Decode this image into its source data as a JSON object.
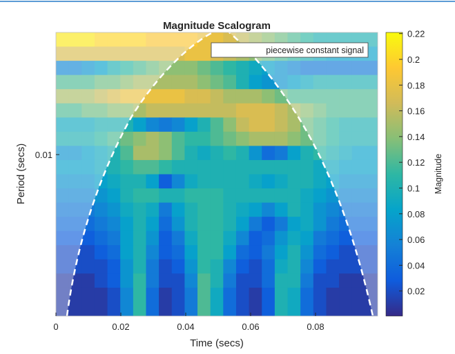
{
  "chart_data": {
    "type": "heatmap",
    "title": "Magnitude Scalogram",
    "xlabel": "Time (secs)",
    "ylabel": "Period (secs)",
    "colorbar_label": "Magnitude",
    "legend": [
      "piecewise constant signal"
    ],
    "legend_placement": "top-right",
    "xlim": [
      0,
      0.1
    ],
    "xticks": [
      0,
      0.02,
      0.04,
      0.06,
      0.08
    ],
    "xtick_labels": [
      "0",
      "0.02",
      "0.04",
      "0.06",
      "0.08"
    ],
    "ytick_labels": [
      "0.01"
    ],
    "clim": [
      0,
      0.22
    ],
    "cticks": [
      0.02,
      0.04,
      0.06,
      0.08,
      0.1,
      0.12,
      0.14,
      0.16,
      0.18,
      0.2,
      0.22
    ],
    "ctick_labels": [
      "0.02",
      "0.04",
      "0.06",
      "0.08",
      "0.1",
      "0.12",
      "0.14",
      "0.16",
      "0.18",
      "0.2",
      "0.22"
    ],
    "colormap": "parula",
    "time_step": 0.004,
    "rows_note_top_to_bottom": "long period to short period",
    "values": [
      [
        0.21,
        0.21,
        0.21,
        0.2,
        0.2,
        0.2,
        0.2,
        0.19,
        0.19,
        0.19,
        0.19,
        0.18,
        0.18,
        0.17,
        0.16,
        0.15,
        0.14,
        0.13,
        0.12,
        0.11,
        0.1,
        0.1,
        0.1,
        0.1,
        0.1
      ],
      [
        0.17,
        0.17,
        0.17,
        0.17,
        0.17,
        0.17,
        0.17,
        0.17,
        0.17,
        0.17,
        0.18,
        0.18,
        0.17,
        0.16,
        0.15,
        0.14,
        0.13,
        0.12,
        0.11,
        0.1,
        0.09,
        0.08,
        0.08,
        0.08,
        0.08
      ],
      [
        0.06,
        0.06,
        0.07,
        0.08,
        0.1,
        0.11,
        0.12,
        0.13,
        0.14,
        0.14,
        0.14,
        0.13,
        0.12,
        0.11,
        0.1,
        0.09,
        0.08,
        0.07,
        0.06,
        0.05,
        0.05,
        0.05,
        0.05,
        0.05,
        0.05
      ],
      [
        0.12,
        0.12,
        0.12,
        0.13,
        0.13,
        0.14,
        0.15,
        0.15,
        0.15,
        0.15,
        0.15,
        0.14,
        0.13,
        0.12,
        0.1,
        0.08,
        0.07,
        0.07,
        0.08,
        0.09,
        0.1,
        0.1,
        0.1,
        0.1,
        0.1
      ],
      [
        0.15,
        0.15,
        0.15,
        0.16,
        0.17,
        0.18,
        0.18,
        0.18,
        0.18,
        0.18,
        0.17,
        0.17,
        0.16,
        0.15,
        0.15,
        0.15,
        0.14,
        0.13,
        0.12,
        0.12,
        0.12,
        0.12,
        0.12,
        0.12,
        0.12
      ],
      [
        0.12,
        0.12,
        0.13,
        0.13,
        0.14,
        0.14,
        0.15,
        0.16,
        0.16,
        0.16,
        0.16,
        0.16,
        0.16,
        0.16,
        0.17,
        0.17,
        0.17,
        0.16,
        0.15,
        0.14,
        0.13,
        0.12,
        0.12,
        0.12,
        0.12
      ],
      [
        0.09,
        0.09,
        0.09,
        0.1,
        0.1,
        0.1,
        0.08,
        0.06,
        0.05,
        0.06,
        0.08,
        0.1,
        0.12,
        0.14,
        0.16,
        0.17,
        0.17,
        0.16,
        0.15,
        0.13,
        0.12,
        0.11,
        0.1,
        0.1,
        0.1
      ],
      [
        0.1,
        0.1,
        0.1,
        0.11,
        0.12,
        0.13,
        0.14,
        0.15,
        0.14,
        0.12,
        0.11,
        0.11,
        0.12,
        0.13,
        0.14,
        0.15,
        0.15,
        0.15,
        0.14,
        0.13,
        0.12,
        0.11,
        0.1,
        0.1,
        0.1
      ],
      [
        0.07,
        0.07,
        0.08,
        0.09,
        0.1,
        0.12,
        0.15,
        0.15,
        0.14,
        0.12,
        0.1,
        0.09,
        0.1,
        0.11,
        0.1,
        0.07,
        0.04,
        0.05,
        0.08,
        0.1,
        0.11,
        0.1,
        0.09,
        0.08,
        0.08
      ],
      [
        0.08,
        0.08,
        0.08,
        0.09,
        0.1,
        0.11,
        0.12,
        0.12,
        0.11,
        0.1,
        0.1,
        0.1,
        0.1,
        0.1,
        0.1,
        0.1,
        0.1,
        0.1,
        0.1,
        0.1,
        0.09,
        0.09,
        0.08,
        0.08,
        0.08
      ],
      [
        0.07,
        0.07,
        0.07,
        0.08,
        0.09,
        0.1,
        0.1,
        0.08,
        0.03,
        0.06,
        0.09,
        0.1,
        0.1,
        0.1,
        0.1,
        0.09,
        0.08,
        0.09,
        0.1,
        0.1,
        0.09,
        0.08,
        0.07,
        0.07,
        0.07
      ],
      [
        0.06,
        0.06,
        0.06,
        0.07,
        0.08,
        0.1,
        0.11,
        0.11,
        0.1,
        0.1,
        0.11,
        0.11,
        0.11,
        0.1,
        0.1,
        0.1,
        0.1,
        0.1,
        0.1,
        0.09,
        0.08,
        0.07,
        0.06,
        0.06,
        0.06
      ],
      [
        0.05,
        0.05,
        0.05,
        0.06,
        0.07,
        0.09,
        0.1,
        0.09,
        0.05,
        0.08,
        0.1,
        0.11,
        0.11,
        0.1,
        0.09,
        0.08,
        0.06,
        0.08,
        0.1,
        0.09,
        0.07,
        0.06,
        0.05,
        0.05,
        0.05
      ],
      [
        0.04,
        0.04,
        0.04,
        0.05,
        0.06,
        0.08,
        0.1,
        0.08,
        0.04,
        0.07,
        0.1,
        0.11,
        0.11,
        0.1,
        0.08,
        0.05,
        0.03,
        0.05,
        0.08,
        0.09,
        0.07,
        0.05,
        0.04,
        0.04,
        0.04
      ],
      [
        0.03,
        0.03,
        0.03,
        0.04,
        0.05,
        0.08,
        0.1,
        0.07,
        0.03,
        0.05,
        0.09,
        0.11,
        0.11,
        0.09,
        0.06,
        0.03,
        0.04,
        0.07,
        0.09,
        0.08,
        0.05,
        0.04,
        0.03,
        0.03,
        0.03
      ],
      [
        0.02,
        0.02,
        0.02,
        0.03,
        0.04,
        0.08,
        0.1,
        0.06,
        0.03,
        0.04,
        0.08,
        0.11,
        0.11,
        0.08,
        0.04,
        0.03,
        0.05,
        0.08,
        0.1,
        0.07,
        0.04,
        0.03,
        0.02,
        0.02,
        0.02
      ],
      [
        0.02,
        0.02,
        0.02,
        0.02,
        0.03,
        0.07,
        0.1,
        0.05,
        0.02,
        0.03,
        0.07,
        0.11,
        0.1,
        0.06,
        0.03,
        0.02,
        0.04,
        0.09,
        0.1,
        0.06,
        0.03,
        0.02,
        0.02,
        0.02,
        0.02
      ],
      [
        0.01,
        0.01,
        0.01,
        0.02,
        0.03,
        0.07,
        0.11,
        0.05,
        0.02,
        0.02,
        0.06,
        0.12,
        0.1,
        0.05,
        0.02,
        0.02,
        0.04,
        0.1,
        0.1,
        0.05,
        0.02,
        0.02,
        0.01,
        0.01,
        0.01
      ],
      [
        0.01,
        0.01,
        0.01,
        0.01,
        0.02,
        0.06,
        0.11,
        0.04,
        0.01,
        0.02,
        0.05,
        0.12,
        0.09,
        0.04,
        0.02,
        0.01,
        0.03,
        0.1,
        0.09,
        0.04,
        0.02,
        0.01,
        0.01,
        0.01,
        0.01
      ],
      [
        0.01,
        0.01,
        0.01,
        0.01,
        0.02,
        0.06,
        0.11,
        0.04,
        0.01,
        0.02,
        0.05,
        0.12,
        0.09,
        0.04,
        0.02,
        0.01,
        0.03,
        0.1,
        0.09,
        0.04,
        0.02,
        0.01,
        0.01,
        0.01,
        0.01
      ]
    ]
  }
}
